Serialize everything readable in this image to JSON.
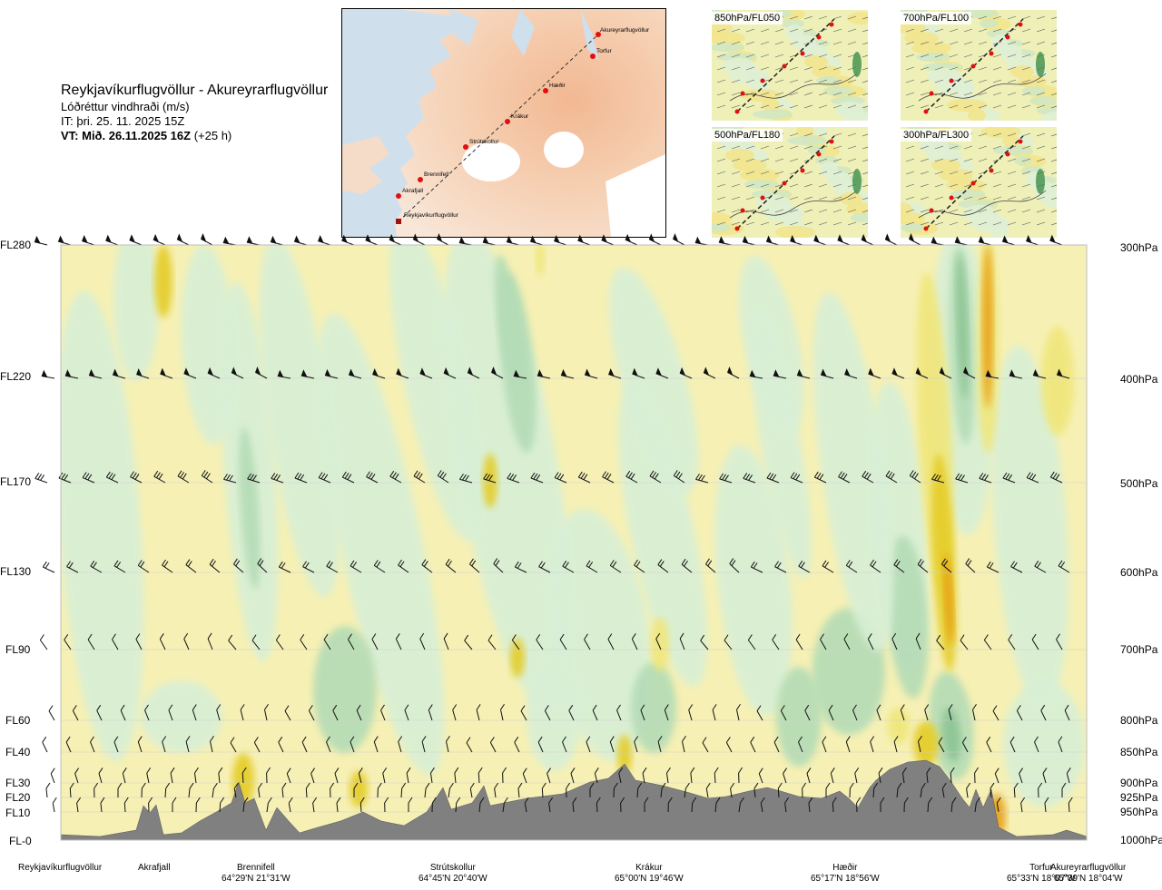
{
  "header": {
    "route_title": "Reykjavíkurflugvöllur - Akureyrarflugvöllur",
    "product": "Lóðréttur vindhraði (m/s)",
    "issue_time": "IT: þri. 25. 11. 2025 15Z",
    "valid_time": "VT: Mið. 26.11.2025 16Z",
    "lead_time": "(+25 h)"
  },
  "map": {
    "route_points": [
      "Akureyrarflugvöllur",
      "Torfur",
      "Hæðir",
      "Krákur",
      "Strútskollur",
      "Brennifell",
      "Akrafjall",
      "Reykjavíkurflugvöllur"
    ]
  },
  "mini_maps": [
    {
      "label": "850hPa/FL050"
    },
    {
      "label": "700hPa/FL100"
    },
    {
      "label": "500hPa/FL180"
    },
    {
      "label": "300hPa/FL300"
    }
  ],
  "levels": [
    {
      "fl": "FL280",
      "pa": "300hPa"
    },
    {
      "fl": "FL220",
      "pa": "400hPa"
    },
    {
      "fl": "FL170",
      "pa": "500hPa"
    },
    {
      "fl": "FL130",
      "pa": "600hPa"
    },
    {
      "fl": "FL90",
      "pa": "700hPa"
    },
    {
      "fl": "FL60",
      "pa": "800hPa"
    },
    {
      "fl": "FL40",
      "pa": "850hPa"
    },
    {
      "fl": "FL30",
      "pa": "900hPa"
    },
    {
      "fl": "FL20",
      "pa": "925hPa"
    },
    {
      "fl": "FL10",
      "pa": "950hPa"
    },
    {
      "fl": "FL-0",
      "pa": "1000hPa"
    }
  ],
  "locations": [
    {
      "name": "Reykjavíkurflugvöllur",
      "coord": ""
    },
    {
      "name": "Akrafjall",
      "coord": ""
    },
    {
      "name": "Brennifell",
      "coord": "64°29'N 21°31'W"
    },
    {
      "name": "Strútskollur",
      "coord": "64°45'N 20°40'W"
    },
    {
      "name": "Krákur",
      "coord": "65°00'N 19°46'W"
    },
    {
      "name": "Hæðir",
      "coord": "65°17'N 18°56'W"
    },
    {
      "name": "Torfur",
      "coord": "65°33'N 18°07'W"
    },
    {
      "name": "Akureyrarflugvöllur",
      "coord": "65°39'N 18°04'W"
    }
  ],
  "colors": {
    "sink_weak": "#f6f0b4",
    "sink_mod": "#f0e67a",
    "sink_strong": "#e4cc28",
    "sink_stronger": "#e8a018",
    "sink_max": "#d86010",
    "near_zero": "#f3faf0",
    "rise_weak": "#d8efd6",
    "rise_mod": "#b4dcb6",
    "rise_strong": "#8cc494",
    "rise_max": "#4ea066",
    "terrain": "#808080"
  },
  "chart_data": {
    "type": "heatmap",
    "title": "Lóðréttur vindhraði (m/s)",
    "x_axis": "distance along route, Reykjavíkurflugvöllur to Akureyrarflugvöllur",
    "y_axis_left": [
      "FL-0",
      "FL10",
      "FL20",
      "FL30",
      "FL40",
      "FL60",
      "FL90",
      "FL130",
      "FL170",
      "FL220",
      "FL280"
    ],
    "y_axis_right": [
      "1000hPa",
      "950hPa",
      "925hPa",
      "900hPa",
      "850hPa",
      "800hPa",
      "700hPa",
      "600hPa",
      "500hPa",
      "400hPa",
      "300hPa"
    ],
    "wind_barb_levels": [
      "FL280",
      "FL220",
      "FL170",
      "FL130",
      "FL90",
      "FL60",
      "FL40",
      "FL30",
      "FL20",
      "FL10"
    ],
    "legend": "none"
  }
}
